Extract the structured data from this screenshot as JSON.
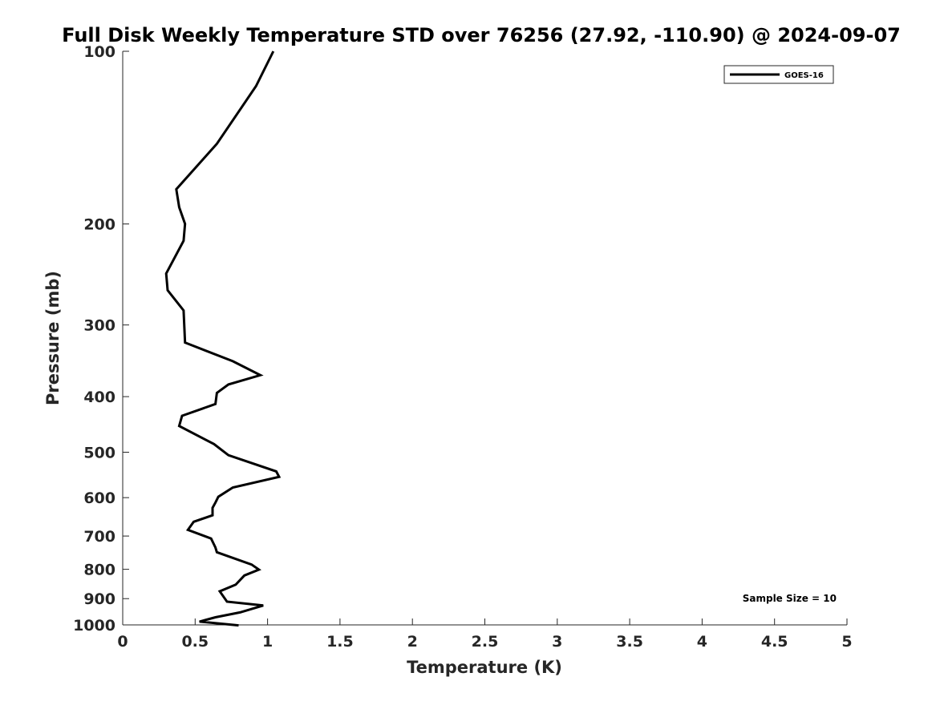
{
  "chart_data": {
    "type": "line",
    "title": "Full Disk Weekly Temperature STD over 76256 (27.92, -110.90) @ 2024-09-07",
    "xlabel": "Temperature (K)",
    "ylabel": "Pressure (mb)",
    "xlim": [
      0,
      5
    ],
    "ylim": [
      100,
      1000
    ],
    "yscale": "log",
    "y_reversed": true,
    "grid": false,
    "legend_position": "top-right",
    "x_ticks": [
      "0",
      "0.5",
      "1",
      "1.5",
      "2",
      "2.5",
      "3",
      "3.5",
      "4",
      "4.5",
      "5"
    ],
    "y_ticks": [
      "100",
      "200",
      "300",
      "400",
      "500",
      "600",
      "700",
      "800",
      "900",
      "1000"
    ],
    "annotation": "Sample Size = 10",
    "series": [
      {
        "name": "GOES-16",
        "color": "#000000",
        "x": [
          1.04,
          0.92,
          0.65,
          0.37,
          0.39,
          0.43,
          0.42,
          0.3,
          0.31,
          0.42,
          0.43,
          0.76,
          0.95,
          0.73,
          0.65,
          0.64,
          0.41,
          0.39,
          0.63,
          0.73,
          1.06,
          1.08,
          0.76,
          0.66,
          0.64,
          0.62,
          0.62,
          0.49,
          0.45,
          0.61,
          0.64,
          0.65,
          0.89,
          0.94,
          0.84,
          0.78,
          0.67,
          0.72,
          0.97,
          0.81,
          0.64,
          0.53,
          0.8
        ],
        "y": [
          100,
          115,
          145,
          174,
          187,
          200,
          214,
          244,
          261,
          283,
          322,
          347,
          367,
          381,
          394,
          412,
          432,
          450,
          484,
          506,
          540,
          552,
          576,
          598,
          612,
          625,
          644,
          661,
          683,
          707,
          733,
          747,
          785,
          801,
          820,
          851,
          874,
          911,
          925,
          951,
          970,
          987,
          1002
        ]
      }
    ]
  }
}
